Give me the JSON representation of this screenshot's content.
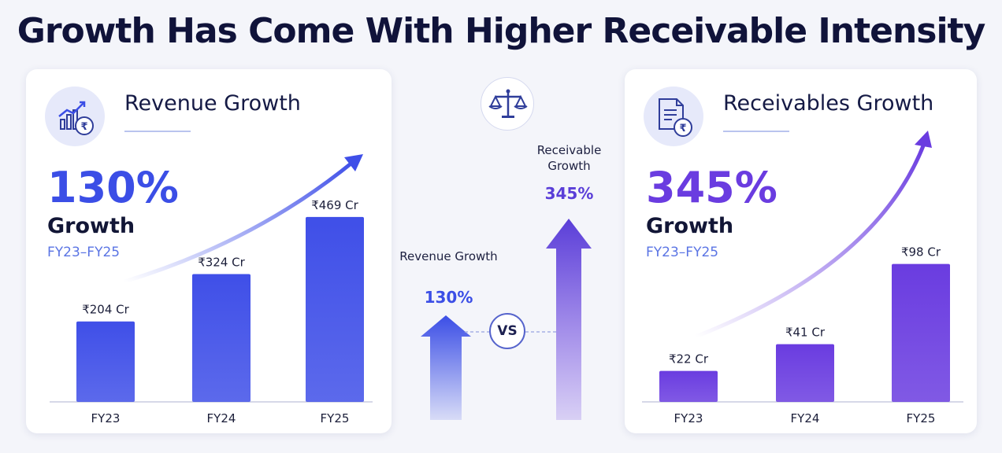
{
  "title": "Growth Has Come With Higher Receivable Intensity",
  "revenue_panel": {
    "title": "Revenue Growth",
    "icon": "rupee-growth-chart-icon",
    "growth_pct": "130%",
    "growth_label": "Growth",
    "period": "FY23–FY25",
    "accent": "#3b4ee6"
  },
  "receivables_panel": {
    "title": "Receivables Growth",
    "icon": "rupee-document-icon",
    "growth_pct": "345%",
    "growth_label": "Growth",
    "period": "FY23–FY25",
    "accent": "#6a3ce0"
  },
  "comparison": {
    "scale_icon": "balance-scale-icon",
    "revenue_label": "Revenue Growth",
    "revenue_pct": "130%",
    "receivable_label": "Receivable Growth",
    "receivable_pct": "345%",
    "vs_label": "VS",
    "revenue_value": 130,
    "receivable_value": 345
  },
  "chart_data": [
    {
      "type": "bar",
      "categories": [
        "FY23",
        "FY24",
        "FY25"
      ],
      "values": [
        204,
        324,
        469
      ],
      "data_labels": [
        "₹204 Cr",
        "₹324 Cr",
        "₹469 Cr"
      ],
      "ylim": [
        0,
        700
      ],
      "grid": false,
      "color": "#3f4fe8"
    },
    {
      "type": "bar",
      "categories": [
        "FY23",
        "FY24",
        "FY25"
      ],
      "values": [
        22,
        41,
        98
      ],
      "data_labels": [
        "₹22 Cr",
        "₹41 Cr",
        "₹98 Cr"
      ],
      "ylim": [
        0,
        135
      ],
      "grid": false,
      "color": "#6a3ce0"
    }
  ]
}
